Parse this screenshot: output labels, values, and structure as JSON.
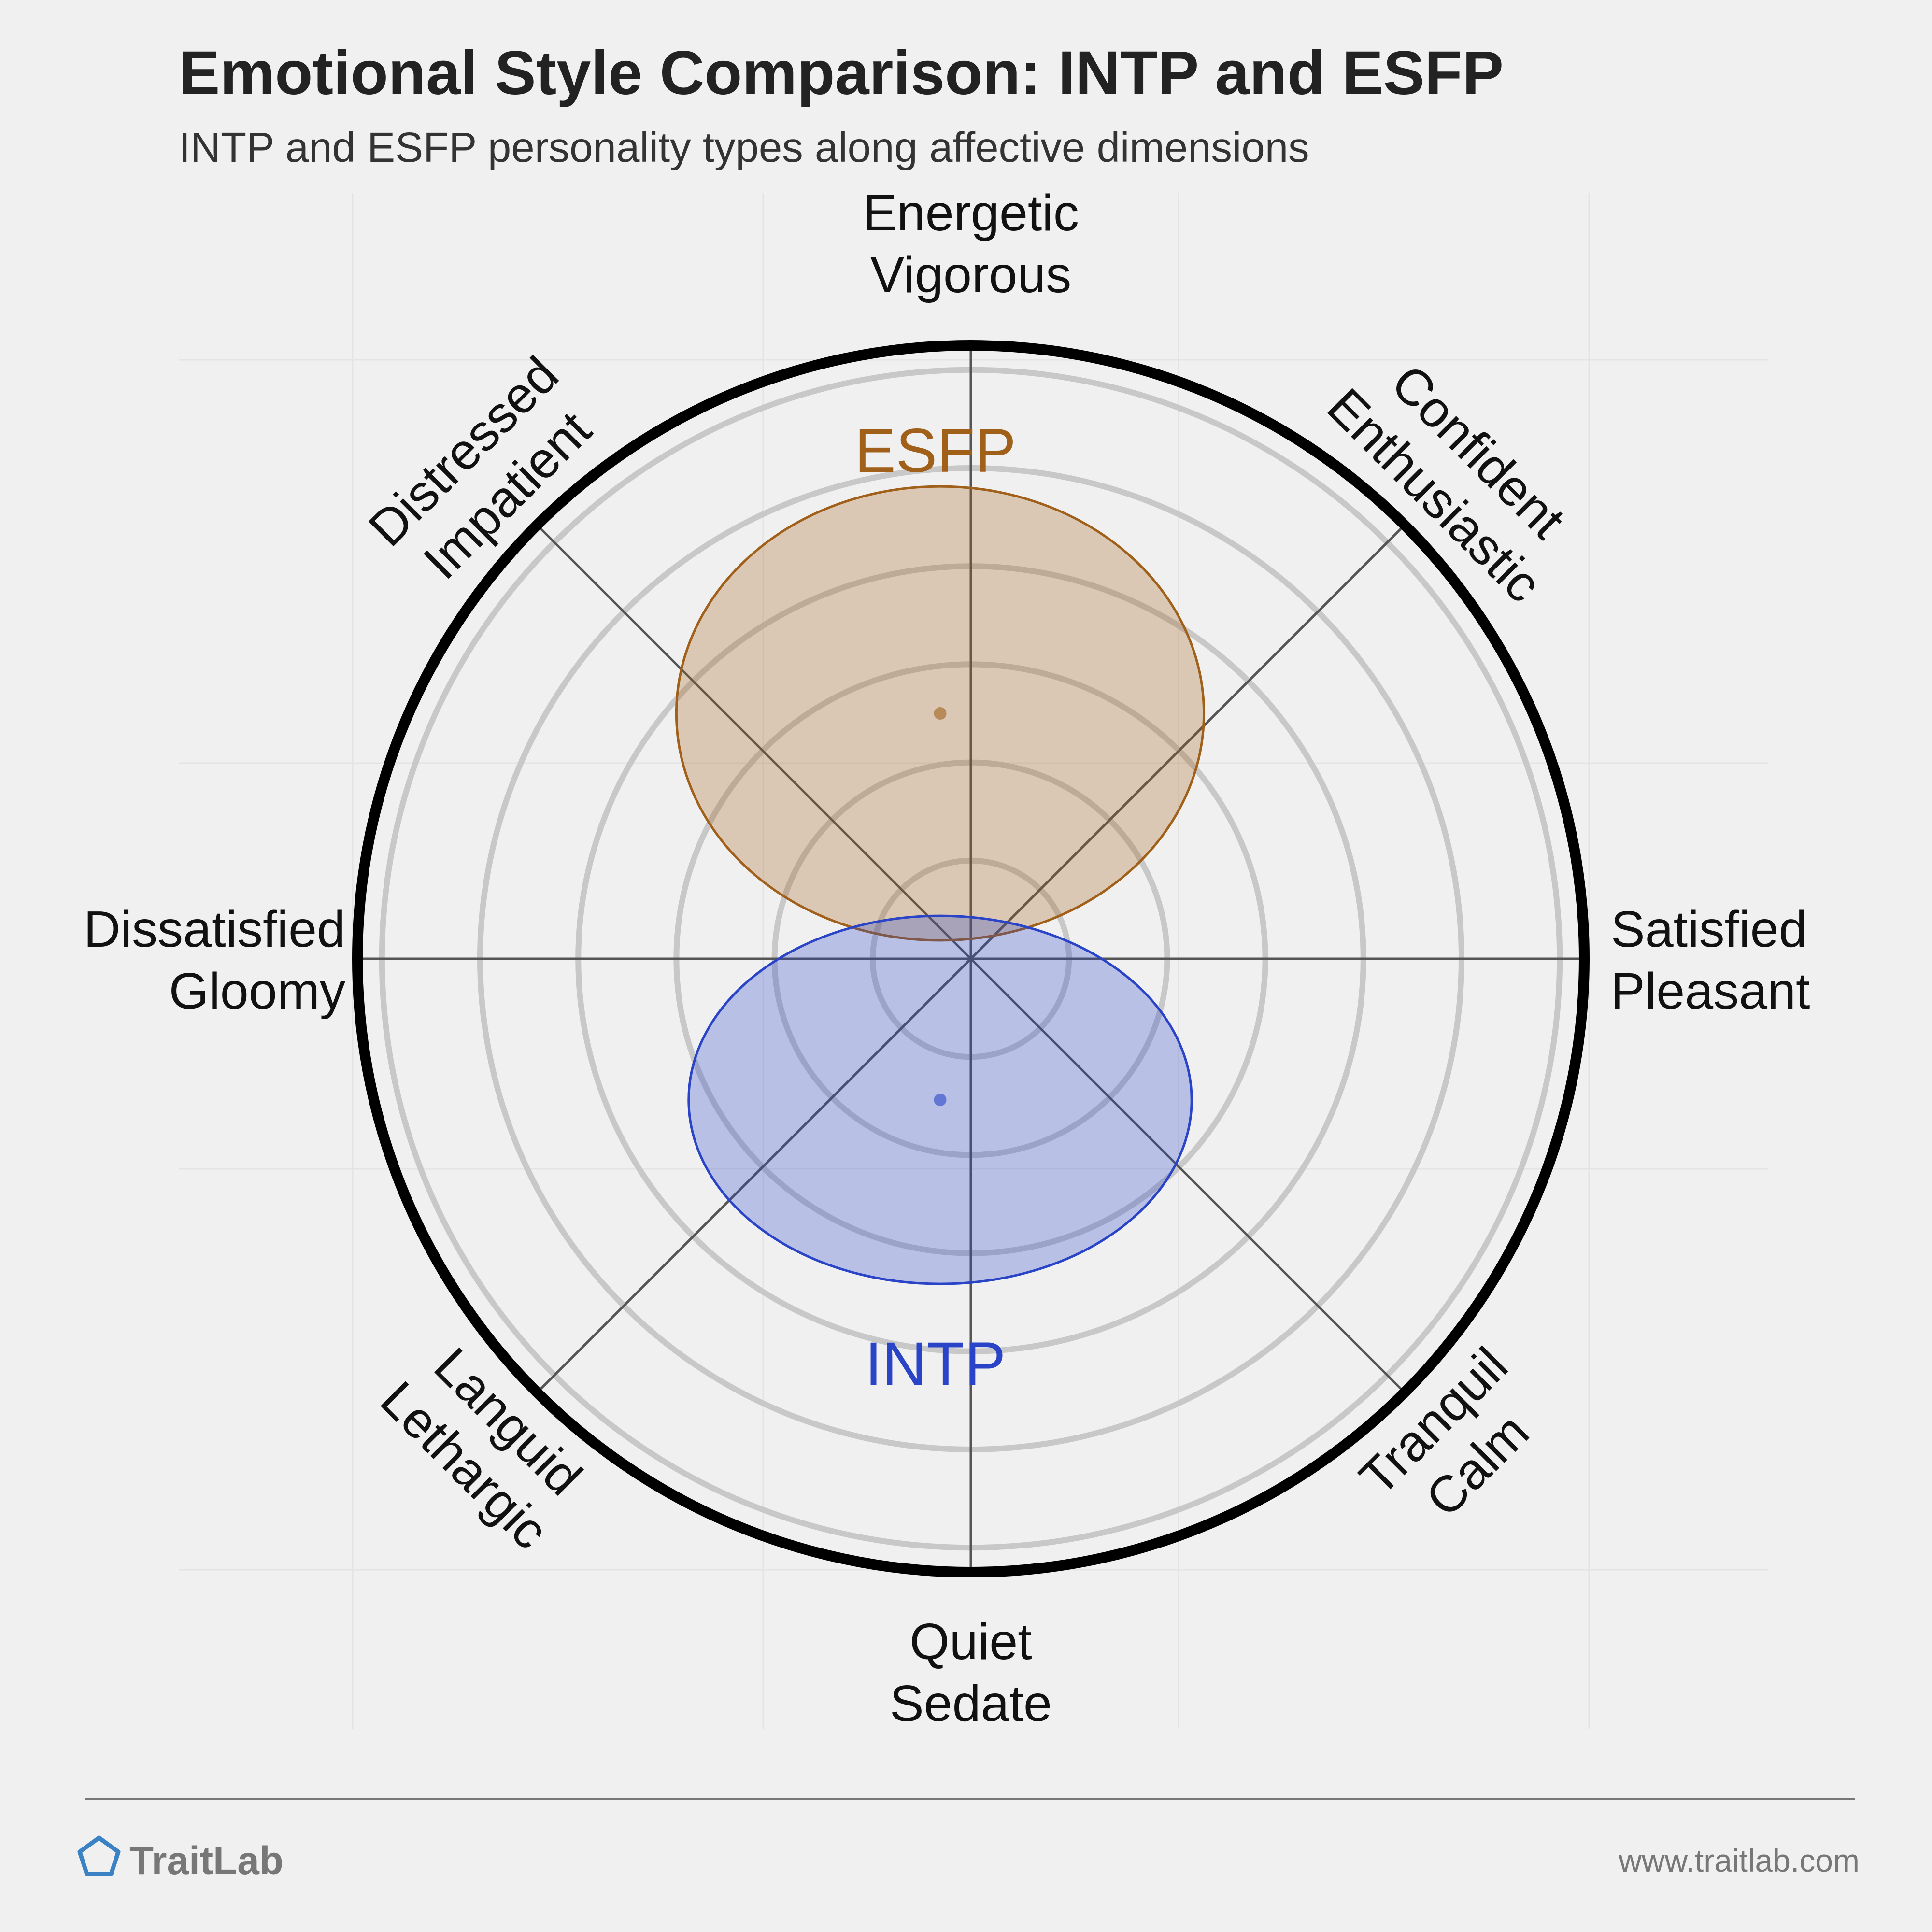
{
  "chart_data": {
    "type": "scatter",
    "title": "Emotional Style Comparison: INTP and ESFP",
    "subtitle": "INTP and ESFP personality types along affective dimensions",
    "axes": [
      {
        "angle": 90,
        "lines": [
          "Energetic",
          "Vigorous"
        ]
      },
      {
        "angle": 45,
        "lines": [
          "Confident",
          "Enthusiastic"
        ]
      },
      {
        "angle": 0,
        "lines": [
          "Satisfied",
          "Pleasant"
        ]
      },
      {
        "angle": -45,
        "lines": [
          "Tranquil",
          "Calm"
        ]
      },
      {
        "angle": -90,
        "lines": [
          "Quiet",
          "Sedate"
        ]
      },
      {
        "angle": -135,
        "lines": [
          "Languid",
          "Lethargic"
        ]
      },
      {
        "angle": 180,
        "lines": [
          "Dissatisfied",
          "Gloomy"
        ]
      },
      {
        "angle": 135,
        "lines": [
          "Distressed",
          "Impatient"
        ]
      }
    ],
    "xlim": [
      -1,
      1
    ],
    "ylim": [
      -1,
      1
    ],
    "rings": 6,
    "series": [
      {
        "name": "ESFP",
        "x": -0.05,
        "y": 0.4,
        "rx": 0.43,
        "ry": 0.37,
        "color": "#a0601a"
      },
      {
        "name": "INTP",
        "x": -0.05,
        "y": -0.23,
        "rx": 0.41,
        "ry": 0.3,
        "color": "#2a44c8"
      }
    ]
  },
  "footer": {
    "brand": "TraitLab",
    "url": "www.traitlab.com"
  }
}
